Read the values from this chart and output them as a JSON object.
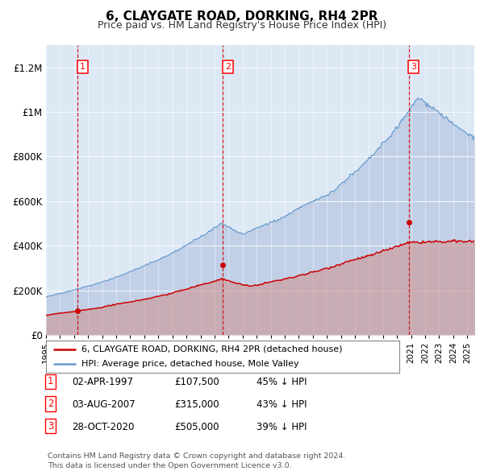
{
  "title": "6, CLAYGATE ROAD, DORKING, RH4 2PR",
  "subtitle": "Price paid vs. HM Land Registry's House Price Index (HPI)",
  "ylim": [
    0,
    1300000
  ],
  "yticks": [
    0,
    200000,
    400000,
    600000,
    800000,
    1000000,
    1200000
  ],
  "ytick_labels": [
    "£0",
    "£200K",
    "£400K",
    "£600K",
    "£800K",
    "£1M",
    "£1.2M"
  ],
  "bg_color": "#dde8f5",
  "sale_year_floats": [
    1997.25,
    2007.58,
    2020.83
  ],
  "sale_prices": [
    107500,
    315000,
    505000
  ],
  "sale_labels": [
    "1",
    "2",
    "3"
  ],
  "sale_date_strs": [
    "02-APR-1997",
    "03-AUG-2007",
    "28-OCT-2020"
  ],
  "sale_price_strs": [
    "£107,500",
    "£315,000",
    "£505,000"
  ],
  "sale_hpi_strs": [
    "45% ↓ HPI",
    "43% ↓ HPI",
    "39% ↓ HPI"
  ],
  "legend_line1": "6, CLAYGATE ROAD, DORKING, RH4 2PR (detached house)",
  "legend_line2": "HPI: Average price, detached house, Mole Valley",
  "footer": "Contains HM Land Registry data © Crown copyright and database right 2024.\nThis data is licensed under the Open Government Licence v3.0.",
  "line_color_red": "#cc0000",
  "line_color_blue": "#6699cc",
  "fill_blue": "#aabedd",
  "fill_red": "#cc9999",
  "dashed_color": "#cc0000",
  "xstart": 1995,
  "xend": 2025.5
}
